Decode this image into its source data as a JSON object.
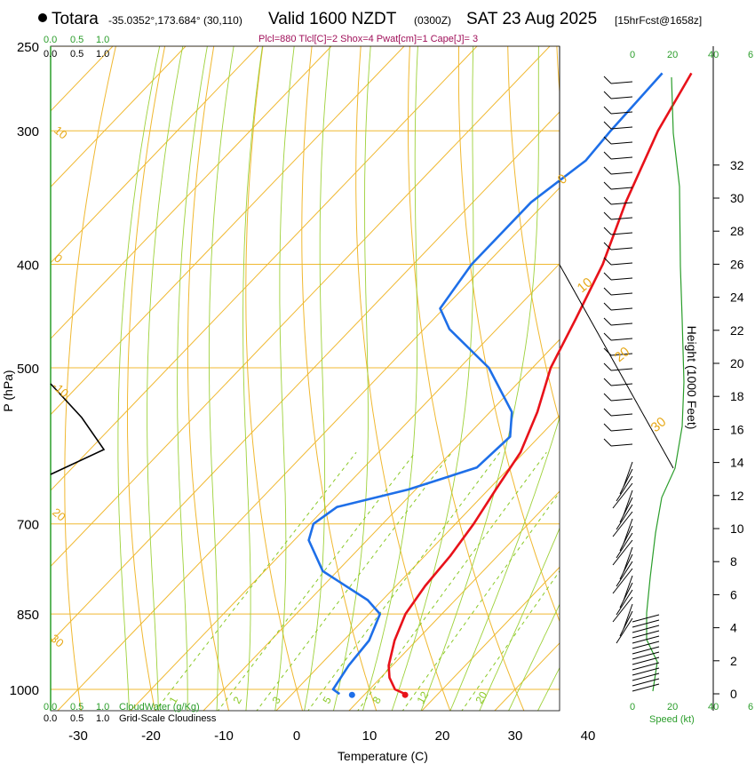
{
  "header": {
    "station": "Totara",
    "coords": "-35.0352°,173.684° (30,110)",
    "valid": "Valid 1600 NZDT",
    "utc": "(0300Z)",
    "date": "SAT 23 Aug 2025",
    "forecast": "[15hrFcst@1658z]",
    "params": "Plcl=880 Tlcl[C]=2 Shox=4 Pwat[cm]=1 Cape[J]= 3"
  },
  "colors": {
    "temperature": "#e8121a",
    "dewpoint": "#1e6fe8",
    "isotherm": "#f0b830",
    "dry_adiabat": "#f0b830",
    "moist_adiabat": "#9ed13a",
    "mixing_ratio": "#8ac926",
    "cloudwater": "#2a9d2a",
    "cloudiness": "#000000",
    "wind_speed": "#2a9d2a"
  },
  "chart_data": {
    "type": "skew-t",
    "xlabel": "Temperature (C)",
    "ylabel": "P (hPa)",
    "y2label": "Height (1000 Feet)",
    "pressure_ticks": [
      250,
      300,
      400,
      500,
      700,
      850,
      1000
    ],
    "temperature_ticks": [
      -30,
      -20,
      -10,
      0,
      10,
      20,
      30,
      40
    ],
    "height_ticks": [
      0,
      2,
      4,
      6,
      8,
      10,
      12,
      14,
      16,
      18,
      20,
      22,
      24,
      26,
      28,
      30,
      32
    ],
    "isotherm_labels": [
      "10",
      "0",
      "-10",
      "20",
      "30"
    ],
    "dry_adiabat_labels": [
      "0",
      "10",
      "20",
      "30"
    ],
    "mixing_ratio_labels": [
      "1",
      "2",
      "3",
      "5",
      "8",
      "12",
      "20"
    ],
    "cloudwater_label": "CloudWater (g/Kg)",
    "cloudwater_ticks": [
      "0.0",
      "0.5",
      "1.0"
    ],
    "cloudiness_label": "Grid-Scale Cloudiness",
    "cloudiness_ticks": [
      "0.0",
      "0.5",
      "1.0"
    ],
    "speed_label": "Speed (kt)",
    "speed_ticks": [
      "0",
      "20",
      "40",
      "6"
    ],
    "temperature_profile": [
      {
        "p": 1010,
        "t": 15.5
      },
      {
        "p": 1000,
        "t": 13.5
      },
      {
        "p": 975,
        "t": 11.2
      },
      {
        "p": 950,
        "t": 9.5
      },
      {
        "p": 900,
        "t": 7.0
      },
      {
        "p": 850,
        "t": 5.0
      },
      {
        "p": 800,
        "t": 4.0
      },
      {
        "p": 750,
        "t": 3.5
      },
      {
        "p": 700,
        "t": 2.5
      },
      {
        "p": 650,
        "t": 1.0
      },
      {
        "p": 600,
        "t": -0.5
      },
      {
        "p": 550,
        "t": -3.5
      },
      {
        "p": 500,
        "t": -7.5
      },
      {
        "p": 450,
        "t": -10.5
      },
      {
        "p": 400,
        "t": -14.0
      },
      {
        "p": 350,
        "t": -19.0
      },
      {
        "p": 300,
        "t": -24.0
      },
      {
        "p": 265,
        "t": -27.0
      }
    ],
    "dewpoint_profile": [
      {
        "p": 1010,
        "t": 6.5
      },
      {
        "p": 1000,
        "t": 5.0
      },
      {
        "p": 950,
        "t": 4.0
      },
      {
        "p": 900,
        "t": 3.5
      },
      {
        "p": 850,
        "t": 1.5
      },
      {
        "p": 825,
        "t": -2.0
      },
      {
        "p": 775,
        "t": -12.0
      },
      {
        "p": 725,
        "t": -18.0
      },
      {
        "p": 700,
        "t": -19.5
      },
      {
        "p": 675,
        "t": -18.5
      },
      {
        "p": 650,
        "t": -11.0
      },
      {
        "p": 620,
        "t": -4.5
      },
      {
        "p": 580,
        "t": -4.0
      },
      {
        "p": 550,
        "t": -7.0
      },
      {
        "p": 500,
        "t": -16.0
      },
      {
        "p": 460,
        "t": -26.5
      },
      {
        "p": 440,
        "t": -30.5
      },
      {
        "p": 400,
        "t": -32.0
      },
      {
        "p": 350,
        "t": -32.0
      },
      {
        "p": 320,
        "t": -30.0
      },
      {
        "p": 300,
        "t": -30.5
      },
      {
        "p": 265,
        "t": -31.0
      }
    ],
    "surface_temperature": 15.5,
    "surface_dewpoint": 6.5
  }
}
